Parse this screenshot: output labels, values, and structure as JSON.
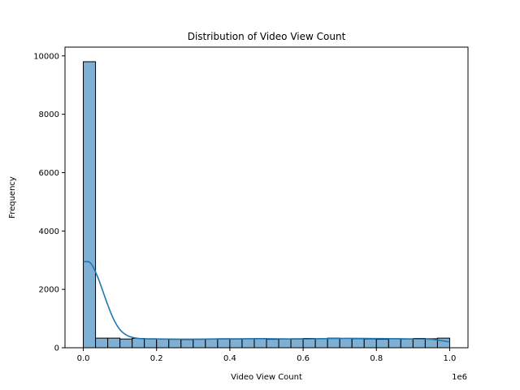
{
  "chart_data": {
    "type": "bar",
    "subtype": "histogram",
    "title": "Distribution of Video View Count",
    "xlabel": "Video View Count",
    "ylabel": "Frequency",
    "x_offset_label": "1e6",
    "xlim": [
      -0.05,
      1.05
    ],
    "ylim": [
      0,
      10300
    ],
    "x_ticks": [
      0.0,
      0.2,
      0.4,
      0.6,
      0.8,
      1.0
    ],
    "x_tick_labels": [
      "0.0",
      "0.2",
      "0.4",
      "0.6",
      "0.8",
      "1.0"
    ],
    "y_ticks": [
      0,
      2000,
      4000,
      6000,
      8000,
      10000
    ],
    "y_tick_labels": [
      "0",
      "2000",
      "4000",
      "6000",
      "8000",
      "10000"
    ],
    "bin_start": 0.0,
    "bin_end": 1.0,
    "counts": [
      9800,
      330,
      330,
      300,
      320,
      310,
      300,
      290,
      280,
      290,
      300,
      310,
      300,
      310,
      320,
      290,
      300,
      310,
      320,
      310,
      330,
      320,
      310,
      300,
      290,
      310,
      300,
      320,
      310,
      330
    ],
    "kde": {
      "x": [
        0.0,
        0.02,
        0.04,
        0.06,
        0.08,
        0.1,
        0.12,
        0.14,
        0.16,
        0.2,
        0.3,
        0.4,
        0.5,
        0.6,
        0.7,
        0.8,
        0.9,
        0.95,
        1.0
      ],
      "y": [
        2950,
        2900,
        2400,
        1700,
        1050,
        620,
        420,
        340,
        310,
        300,
        295,
        305,
        310,
        300,
        320,
        315,
        300,
        290,
        200
      ]
    },
    "colors": {
      "bar_fill": "#7fafd3",
      "bar_edge": "#000000",
      "kde_line": "#1f77b4"
    },
    "grid": false,
    "legend": "none"
  }
}
